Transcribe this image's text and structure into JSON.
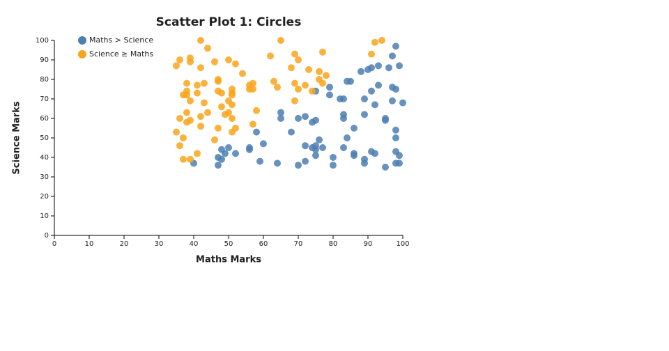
{
  "chart_data": {
    "type": "scatter",
    "title": "Scatter Plot 1: Circles",
    "x_label": "Maths Marks",
    "y_label": "Science Marks",
    "xlim": [
      0,
      100
    ],
    "ylim": [
      0,
      100
    ],
    "xticks": [
      0,
      10,
      20,
      30,
      40,
      50,
      60,
      70,
      80,
      90,
      100
    ],
    "yticks": [
      0,
      10,
      20,
      30,
      40,
      50,
      60,
      70,
      80,
      90,
      100
    ],
    "legend": "top-left",
    "series": [
      {
        "name": "Maths > Science",
        "color": "#4e7fb3",
        "x": [
          98,
          97,
          99,
          96,
          93,
          91,
          90,
          88,
          84,
          85,
          79,
          79,
          75,
          82,
          83,
          89,
          91,
          93,
          97,
          98,
          92,
          97,
          100,
          65,
          65,
          70,
          72,
          74,
          75,
          83,
          83,
          89,
          95,
          95,
          58,
          68,
          86,
          98,
          84,
          98,
          76,
          60,
          50,
          56,
          56,
          48,
          72,
          74,
          77,
          75,
          83,
          75,
          49,
          52,
          75,
          86,
          86,
          91,
          92,
          98,
          99,
          47,
          48,
          59,
          80,
          89,
          89,
          72,
          64,
          40,
          47,
          70,
          80,
          95,
          98,
          99
        ],
        "y": [
          97,
          92,
          87,
          86,
          87,
          86,
          85,
          84,
          79,
          79,
          76,
          72,
          74,
          70,
          70,
          70,
          74,
          77,
          76,
          75,
          67,
          69,
          68,
          63,
          60,
          60,
          61,
          58,
          59,
          62,
          60,
          62,
          60,
          59,
          53,
          53,
          55,
          54,
          50,
          50,
          49,
          47,
          45,
          45,
          44,
          44,
          46,
          45,
          45,
          46,
          45,
          44,
          42,
          42,
          41,
          42,
          41,
          43,
          42,
          43,
          41,
          40,
          39,
          38,
          40,
          39,
          37,
          38,
          37,
          37,
          36,
          36,
          36,
          35,
          37,
          37
        ]
      },
      {
        "name": "Science ≥ Maths",
        "color": "#f9a51a",
        "x": [
          42,
          65,
          94,
          92,
          44,
          77,
          69,
          91,
          62,
          39,
          36,
          39,
          50,
          46,
          52,
          70,
          35,
          42,
          68,
          73,
          76,
          78,
          54,
          47,
          47,
          76,
          63,
          77,
          38,
          41,
          43,
          57,
          56,
          72,
          69,
          64,
          56,
          57,
          51,
          70,
          74,
          38,
          47,
          48,
          41,
          37,
          38,
          51,
          51,
          39,
          50,
          43,
          69,
          51,
          48,
          44,
          38,
          50,
          49,
          58,
          42,
          36,
          51,
          39,
          38,
          57,
          42,
          47,
          52,
          51,
          35,
          37,
          46,
          36,
          41,
          37,
          39
        ],
        "y": [
          100,
          100,
          100,
          99,
          96,
          94,
          93,
          93,
          92,
          91,
          90,
          89,
          90,
          89,
          88,
          90,
          87,
          86,
          86,
          85,
          84,
          82,
          83,
          80,
          79,
          80,
          79,
          78,
          78,
          77,
          78,
          78,
          77,
          77,
          78,
          76,
          75,
          75,
          75,
          75,
          74,
          74,
          74,
          73,
          73,
          72,
          72,
          73,
          72,
          69,
          69,
          68,
          69,
          67,
          66,
          63,
          63,
          63,
          62,
          64,
          61,
          60,
          60,
          59,
          58,
          57,
          56,
          55,
          55,
          53,
          53,
          50,
          49,
          46,
          42,
          39,
          39
        ]
      }
    ]
  }
}
